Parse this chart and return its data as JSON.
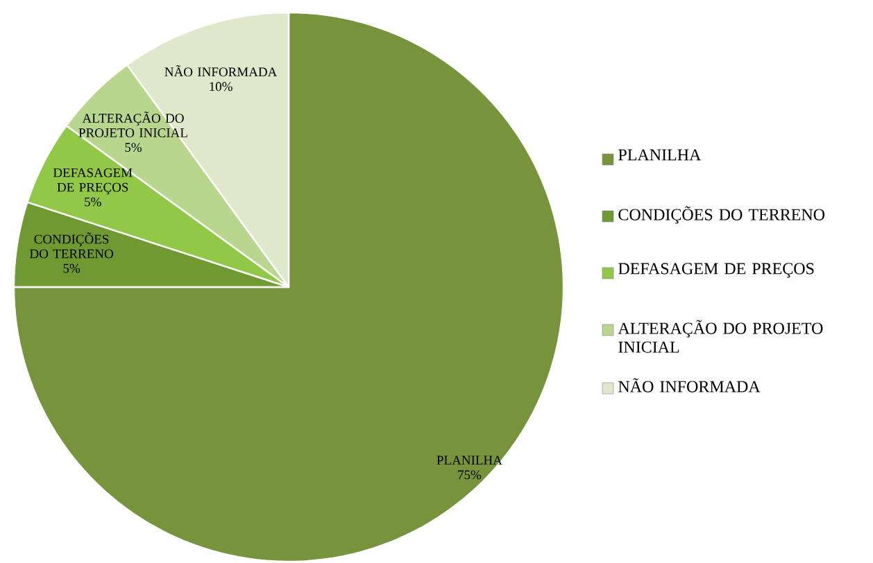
{
  "chart_data": {
    "type": "pie",
    "categories": [
      "PLANILHA",
      "CONDIÇÕES DO TERRENO",
      "DEFASAGEM DE PREÇOS",
      "ALTERAÇÃO DO PROJETO INICIAL",
      "NÃO INFORMADA"
    ],
    "values": [
      75,
      5,
      5,
      5,
      10
    ],
    "value_labels": [
      "75%",
      "5%",
      "5%",
      "5%",
      "10%"
    ],
    "colors": [
      "#77933c",
      "#6f9a32",
      "#92c847",
      "#b9d68f",
      "#dfe8cb"
    ],
    "legend": "right"
  }
}
